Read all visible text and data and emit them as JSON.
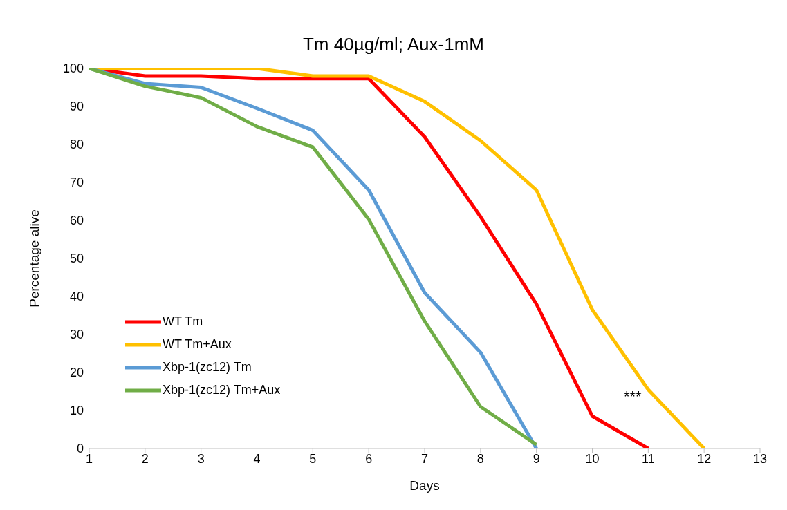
{
  "chart_data": {
    "type": "line",
    "title": "Tm 40µg/ml; Aux-1mM",
    "xlabel": "Days",
    "ylabel": "Percentage alive",
    "x": [
      1,
      2,
      3,
      4,
      5,
      6,
      7,
      8,
      9,
      10,
      11,
      12
    ],
    "series": [
      {
        "name": "WT Tm",
        "color": "#ff0000",
        "values": [
          100,
          98,
          98,
          97.3,
          97.3,
          97.3,
          82,
          61,
          38,
          8.5,
          0,
          null
        ]
      },
      {
        "name": "WT Tm+Aux",
        "color": "#ffc000",
        "values": [
          100,
          100,
          100,
          100,
          98,
          98,
          91.3,
          81,
          68,
          36.5,
          15.5,
          0
        ]
      },
      {
        "name": "Xbp-1(zc12) Tm",
        "color": "#5b9bd5",
        "values": [
          100,
          96,
          95,
          89.5,
          83.7,
          68,
          41,
          25.3,
          0,
          null,
          null,
          null
        ]
      },
      {
        "name": "Xbp-1(zc12) Tm+Aux",
        "color": "#70ad47",
        "values": [
          100,
          95.3,
          92.3,
          84.7,
          79.3,
          60.3,
          33.5,
          11,
          1,
          null,
          null,
          null
        ]
      }
    ],
    "xlim": [
      1,
      13
    ],
    "xticks": [
      1,
      2,
      3,
      4,
      5,
      6,
      7,
      8,
      9,
      10,
      11,
      12,
      13
    ],
    "ylim": [
      0,
      100
    ],
    "yticks": [
      0,
      10,
      20,
      30,
      40,
      50,
      60,
      70,
      80,
      90,
      100
    ],
    "annotations": [
      "***"
    ],
    "legend": "bottom left",
    "grid": false,
    "marker": "none",
    "line_style": "solid"
  }
}
